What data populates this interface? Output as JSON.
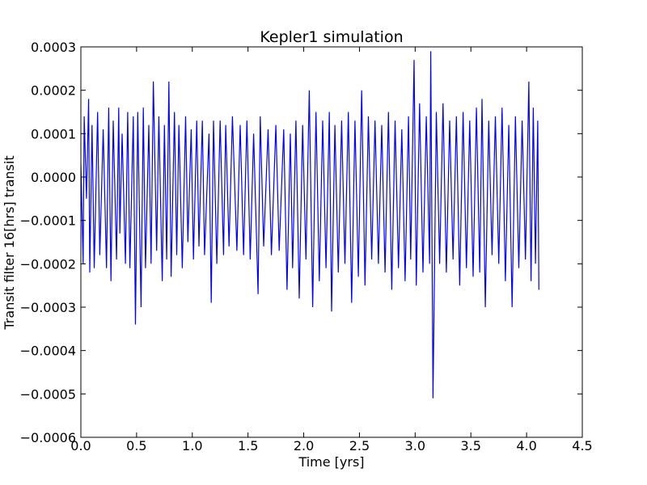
{
  "chart_data": {
    "type": "line",
    "title": "Kepler1 simulation",
    "xlabel": "Time [yrs]",
    "ylabel": "Transit filter 16[hrs] transit",
    "xlim": [
      0.0,
      4.5
    ],
    "ylim": [
      -0.0006,
      0.0003
    ],
    "xticks": [
      "0.0",
      "0.5",
      "1.0",
      "1.5",
      "2.0",
      "2.5",
      "3.0",
      "3.5",
      "4.0",
      "4.5"
    ],
    "yticks": [
      "0.0003",
      "0.0002",
      "0.0001",
      "0.0000",
      "−0.0001",
      "−0.0002",
      "−0.0003",
      "−0.0004",
      "−0.0005",
      "−0.0006"
    ],
    "grid": false,
    "series": [
      {
        "color": "#0000ff",
        "x": [
          0.0,
          0.02,
          0.03,
          0.05,
          0.07,
          0.08,
          0.1,
          0.12,
          0.15,
          0.17,
          0.2,
          0.23,
          0.25,
          0.27,
          0.29,
          0.32,
          0.34,
          0.35,
          0.37,
          0.4,
          0.42,
          0.44,
          0.47,
          0.49,
          0.51,
          0.54,
          0.56,
          0.58,
          0.61,
          0.63,
          0.65,
          0.68,
          0.7,
          0.73,
          0.75,
          0.77,
          0.79,
          0.81,
          0.84,
          0.86,
          0.88,
          0.91,
          0.94,
          0.96,
          0.99,
          1.01,
          1.04,
          1.06,
          1.09,
          1.11,
          1.15,
          1.17,
          1.19,
          1.22,
          1.25,
          1.28,
          1.3,
          1.33,
          1.36,
          1.4,
          1.43,
          1.46,
          1.49,
          1.52,
          1.55,
          1.59,
          1.61,
          1.64,
          1.68,
          1.71,
          1.75,
          1.78,
          1.82,
          1.85,
          1.88,
          1.9,
          1.93,
          1.96,
          1.99,
          2.02,
          2.05,
          2.08,
          2.11,
          2.14,
          2.17,
          2.2,
          2.23,
          2.25,
          2.28,
          2.31,
          2.34,
          2.37,
          2.4,
          2.43,
          2.46,
          2.49,
          2.52,
          2.55,
          2.58,
          2.61,
          2.64,
          2.67,
          2.7,
          2.73,
          2.76,
          2.79,
          2.82,
          2.85,
          2.88,
          2.91,
          2.94,
          2.96,
          2.99,
          3.01,
          3.04,
          3.07,
          3.1,
          3.13,
          3.14,
          3.16,
          3.19,
          3.22,
          3.25,
          3.28,
          3.31,
          3.34,
          3.37,
          3.4,
          3.43,
          3.46,
          3.49,
          3.52,
          3.55,
          3.58,
          3.6,
          3.63,
          3.66,
          3.69,
          3.72,
          3.75,
          3.78,
          3.81,
          3.84,
          3.87,
          3.9,
          3.93,
          3.96,
          3.99,
          4.02,
          4.04,
          4.06,
          4.08,
          4.1,
          4.11
        ],
        "y": [
          3e-05,
          -0.0002,
          0.00014,
          -5e-05,
          0.00018,
          -0.00022,
          0.00012,
          -0.00021,
          0.00015,
          -0.00018,
          0.00011,
          -0.00021,
          0.00016,
          -0.00024,
          0.00013,
          -0.00019,
          0.00016,
          -0.00013,
          0.0001,
          -0.0002,
          0.00015,
          -0.00021,
          0.00014,
          -0.00034,
          0.00015,
          -0.0003,
          0.00016,
          -0.00021,
          0.00012,
          -0.0002,
          0.00022,
          -0.00017,
          0.00014,
          -0.00024,
          0.00012,
          -0.00019,
          0.00022,
          -0.00023,
          0.00015,
          -0.00018,
          0.00012,
          -0.00021,
          0.00014,
          -0.00015,
          0.00011,
          -0.00019,
          0.00013,
          -0.00016,
          0.00013,
          -0.00018,
          0.0001,
          -0.00029,
          0.00013,
          -0.0002,
          0.00013,
          -0.00018,
          0.00012,
          -0.00016,
          0.00014,
          -0.00017,
          0.00012,
          -0.00018,
          0.00013,
          -0.00019,
          0.0001,
          -0.00027,
          0.00014,
          -0.00016,
          0.00011,
          -0.00018,
          0.00012,
          -0.00017,
          0.00011,
          -0.00026,
          0.0001,
          -0.00021,
          0.00013,
          -0.00028,
          0.00012,
          -0.00019,
          0.0002,
          -0.0003,
          0.00015,
          -0.00024,
          0.00013,
          -0.00021,
          0.00015,
          -0.00031,
          0.00012,
          -0.00022,
          0.00013,
          -0.0002,
          0.00015,
          -0.00029,
          0.00013,
          -0.00023,
          0.0002,
          -0.00025,
          0.00014,
          -0.00019,
          0.00013,
          -0.0002,
          0.00012,
          -0.00022,
          0.00015,
          -0.00026,
          0.00013,
          -0.00021,
          0.00011,
          -0.00024,
          0.00014,
          -0.00019,
          0.00027,
          -0.00025,
          0.00017,
          -0.00022,
          0.00014,
          -0.0002,
          0.00029,
          -0.00051,
          0.00015,
          -0.0002,
          0.00017,
          -0.00022,
          0.00013,
          -0.00019,
          0.00014,
          -0.00025,
          0.00015,
          -0.00021,
          0.00013,
          -0.00023,
          0.00016,
          -0.00022,
          0.00018,
          -0.0003,
          0.00013,
          -0.00018,
          0.00014,
          -0.0002,
          0.00016,
          -0.00024,
          0.00012,
          -0.0003,
          0.00014,
          -0.00021,
          0.00013,
          -0.00019,
          0.00022,
          -0.00024,
          0.00016,
          -0.0002,
          0.00013,
          -0.00026
        ]
      }
    ]
  }
}
